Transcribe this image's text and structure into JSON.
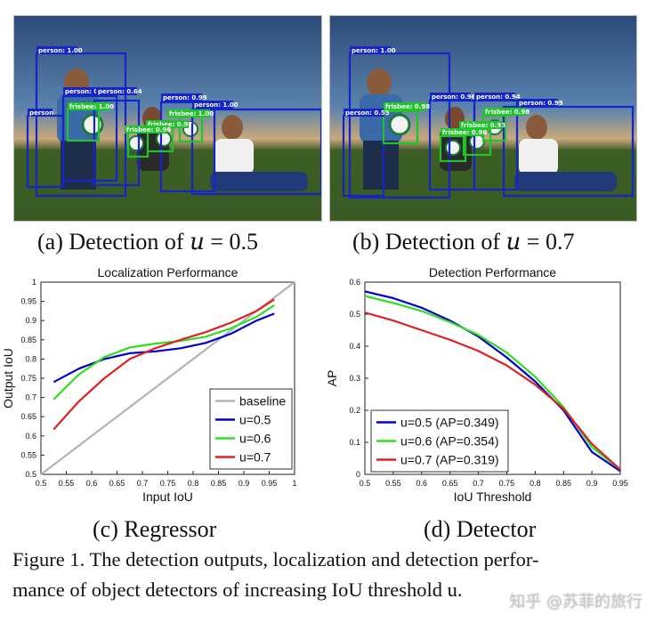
{
  "photos": [
    {
      "id": "a",
      "boxes": [
        {
          "label": "person: 1.00",
          "color": "#1525c8"
        },
        {
          "label": "person: 0.56",
          "color": "#1525c8"
        },
        {
          "label": "person: 0.64",
          "color": "#1525c8"
        },
        {
          "label": "person: 0.99",
          "color": "#1525c8"
        },
        {
          "label": "person: 1.00",
          "color": "#1525c8"
        },
        {
          "label": "person",
          "color": "#1525c8"
        },
        {
          "label": "frisbee: 1.00",
          "color": "#21c42a"
        },
        {
          "label": "frisbee: 1.00",
          "color": "#21c42a"
        },
        {
          "label": "frisbee: 0.97",
          "color": "#21c42a"
        },
        {
          "label": "frisbee: 0.96",
          "color": "#21c42a"
        }
      ]
    },
    {
      "id": "b",
      "boxes": [
        {
          "label": "person: 1.00",
          "color": "#1525c8"
        },
        {
          "label": "person: 0.55",
          "color": "#1525c8"
        },
        {
          "label": "person: 0.96",
          "color": "#1525c8"
        },
        {
          "label": "person: 0.94",
          "color": "#1525c8"
        },
        {
          "label": "person: 0.99",
          "color": "#1525c8"
        },
        {
          "label": "frisbee: 0.98",
          "color": "#21c42a"
        },
        {
          "label": "frisbee: 0.96",
          "color": "#21c42a"
        },
        {
          "label": "frisbee: 0.93",
          "color": "#21c42a"
        },
        {
          "label": "frisbee: 0.98",
          "color": "#21c42a"
        }
      ]
    }
  ],
  "subcaptions": {
    "a_prefix": "(a) Detection of ",
    "a_var": "u",
    "a_suffix": " = 0.5",
    "b_prefix": "(b) Detection of ",
    "b_var": "u",
    "b_suffix": " = 0.7",
    "c": "(c) Regressor",
    "d": "(d) Detector"
  },
  "chart_data": [
    {
      "type": "line",
      "title": "Localization Performance",
      "xlabel": "Input IoU",
      "ylabel": "Output IoU",
      "xlim": [
        0.5,
        1
      ],
      "ylim": [
        0.5,
        1
      ],
      "xticks": [
        "0.5",
        "0.55",
        "0.6",
        "0.65",
        "0.7",
        "0.75",
        "0.8",
        "0.85",
        "0.9",
        "0.95",
        "1"
      ],
      "yticks": [
        "0.5",
        "0.55",
        "0.6",
        "0.65",
        "0.7",
        "0.75",
        "0.8",
        "0.85",
        "0.9",
        "0.95",
        "1"
      ],
      "grid": false,
      "legend": "bottom-right",
      "series": [
        {
          "name": "baseline",
          "color": "#b3b3b3",
          "x": [
            0.5,
            1.0
          ],
          "y": [
            0.5,
            1.0
          ]
        },
        {
          "name": "u=0.5",
          "color": "#0000cc",
          "x": [
            0.525,
            0.575,
            0.625,
            0.675,
            0.725,
            0.775,
            0.825,
            0.875,
            0.925,
            0.96
          ],
          "y": [
            0.74,
            0.775,
            0.8,
            0.815,
            0.82,
            0.828,
            0.842,
            0.866,
            0.9,
            0.918
          ]
        },
        {
          "name": "u=0.6",
          "color": "#33dd22",
          "x": [
            0.525,
            0.575,
            0.625,
            0.675,
            0.725,
            0.775,
            0.825,
            0.875,
            0.925,
            0.96
          ],
          "y": [
            0.695,
            0.76,
            0.805,
            0.83,
            0.84,
            0.847,
            0.858,
            0.88,
            0.91,
            0.94
          ]
        },
        {
          "name": "u=0.7",
          "color": "#dd2222",
          "x": [
            0.525,
            0.575,
            0.625,
            0.675,
            0.725,
            0.775,
            0.825,
            0.875,
            0.925,
            0.96
          ],
          "y": [
            0.617,
            0.69,
            0.75,
            0.8,
            0.828,
            0.85,
            0.87,
            0.895,
            0.925,
            0.955
          ]
        }
      ]
    },
    {
      "type": "line",
      "title": "Detection Performance",
      "xlabel": "IoU Threshold",
      "ylabel": "AP",
      "xlim": [
        0.5,
        0.95
      ],
      "ylim": [
        0,
        0.6
      ],
      "xticks": [
        "0.5",
        "0.55",
        "0.6",
        "0.65",
        "0.7",
        "0.75",
        "0.8",
        "0.85",
        "0.9",
        "0.95"
      ],
      "yticks": [
        "0",
        "0.1",
        "0.2",
        "0.3",
        "0.4",
        "0.5",
        "0.6"
      ],
      "grid": false,
      "legend": "bottom-left",
      "series": [
        {
          "name": "u=0.5 (AP=0.349)",
          "color": "#0000cc",
          "x": [
            0.5,
            0.55,
            0.6,
            0.65,
            0.7,
            0.75,
            0.8,
            0.85,
            0.9,
            0.95
          ],
          "y": [
            0.571,
            0.55,
            0.52,
            0.48,
            0.43,
            0.365,
            0.29,
            0.2,
            0.07,
            0.01
          ]
        },
        {
          "name": "u=0.6 (AP=0.354)",
          "color": "#33dd22",
          "x": [
            0.5,
            0.55,
            0.6,
            0.65,
            0.7,
            0.75,
            0.8,
            0.85,
            0.9,
            0.95
          ],
          "y": [
            0.557,
            0.535,
            0.51,
            0.475,
            0.435,
            0.38,
            0.305,
            0.21,
            0.085,
            0.015
          ]
        },
        {
          "name": "u=0.7 (AP=0.319)",
          "color": "#dd2222",
          "x": [
            0.5,
            0.55,
            0.6,
            0.65,
            0.7,
            0.75,
            0.8,
            0.85,
            0.9,
            0.95
          ],
          "y": [
            0.505,
            0.48,
            0.45,
            0.42,
            0.385,
            0.34,
            0.28,
            0.205,
            0.095,
            0.015
          ]
        }
      ]
    }
  ],
  "caption": {
    "line1": "Figure 1. The detection outputs, localization and detection perfor-",
    "line2": "mance of object detectors of increasing IoU threshold u."
  },
  "watermark": "知乎 @苏菲的旅行"
}
